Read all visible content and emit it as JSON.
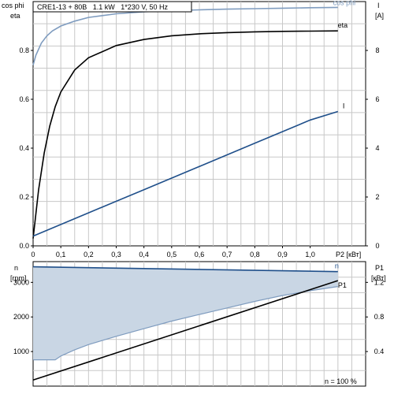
{
  "chart_data": [
    {
      "type": "line",
      "title": "CRE1-13 + 80B   1.1 kW   1*230 V, 50 Hz",
      "xlabel": "P2 [кВт]",
      "xlim": [
        0,
        1.2
      ],
      "x_ticks": [
        "0",
        "0,1",
        "0,2",
        "0,3",
        "0,4",
        "0,5",
        "0,6",
        "0,7",
        "0,8",
        "0,9",
        "1,0"
      ],
      "ylabel_left": [
        "cos phi",
        "eta"
      ],
      "ylim_left": [
        0,
        1.0
      ],
      "y_ticks_left": [
        "0.0",
        "0.2",
        "0.4",
        "0.6",
        "0.8"
      ],
      "ylabel_right": [
        "I",
        "[A]"
      ],
      "ylim_right": [
        0,
        10
      ],
      "y_ticks_right": [
        "0",
        "2",
        "4",
        "6",
        "8"
      ],
      "grid": true,
      "series": [
        {
          "name": "cos phi",
          "axis": "left",
          "color": "#7f9cbf",
          "x": [
            0,
            0.01,
            0.02,
            0.03,
            0.05,
            0.07,
            0.1,
            0.15,
            0.2,
            0.3,
            0.4,
            0.5,
            0.6,
            0.7,
            0.8,
            0.9,
            1.0,
            1.1
          ],
          "y": [
            0.74,
            0.78,
            0.805,
            0.83,
            0.86,
            0.88,
            0.9,
            0.92,
            0.935,
            0.95,
            0.958,
            0.963,
            0.966,
            0.969,
            0.971,
            0.973,
            0.975,
            0.976
          ]
        },
        {
          "name": "eta",
          "axis": "left",
          "color": "#000000",
          "x": [
            0,
            0.02,
            0.04,
            0.06,
            0.08,
            0.1,
            0.15,
            0.2,
            0.3,
            0.4,
            0.5,
            0.6,
            0.7,
            0.8,
            0.9,
            1.0,
            1.1
          ],
          "y": [
            0.03,
            0.23,
            0.38,
            0.49,
            0.57,
            0.63,
            0.72,
            0.77,
            0.82,
            0.845,
            0.86,
            0.868,
            0.873,
            0.876,
            0.878,
            0.879,
            0.88
          ]
        },
        {
          "name": "I",
          "axis": "right",
          "color": "#1f4f8a",
          "x": [
            0,
            0.2,
            0.4,
            0.6,
            0.8,
            1.0,
            1.1
          ],
          "y": [
            0.4,
            1.35,
            2.3,
            3.25,
            4.2,
            5.15,
            5.5
          ]
        }
      ]
    },
    {
      "type": "line",
      "xlim": [
        0,
        1.2
      ],
      "ylabel_left": [
        "n",
        "[rpm]"
      ],
      "ylim_left": [
        0,
        3600
      ],
      "y_ticks_left": [
        "1000",
        "2000",
        "3000"
      ],
      "ylabel_right": [
        "P1",
        "[кВт]"
      ],
      "ylim_right": [
        0,
        1.44
      ],
      "y_ticks_right": [
        "0.4",
        "0.8",
        "1.2"
      ],
      "annotation": "n = 100 %",
      "grid": true,
      "series": [
        {
          "name": "n",
          "axis": "left",
          "color": "#1f4f8a",
          "x": [
            0,
            1.1
          ],
          "y": [
            3450,
            3310
          ]
        },
        {
          "name": "P1",
          "axis": "right",
          "color": "#000000",
          "x": [
            0,
            1.1
          ],
          "y": [
            0.07,
            1.22
          ]
        }
      ],
      "band": {
        "color": "#c9d6e4",
        "edge_color": "#7f9cbf",
        "x": [
          0,
          0.02,
          0.08,
          0.1,
          0.15,
          0.2,
          0.3,
          0.4,
          0.5,
          0.6,
          0.7,
          0.8,
          0.9,
          1.0,
          1.1
        ],
        "lower": [
          760,
          760,
          760,
          870,
          1050,
          1200,
          1440,
          1660,
          1880,
          2070,
          2260,
          2450,
          2620,
          2760,
          2880
        ]
      }
    }
  ]
}
